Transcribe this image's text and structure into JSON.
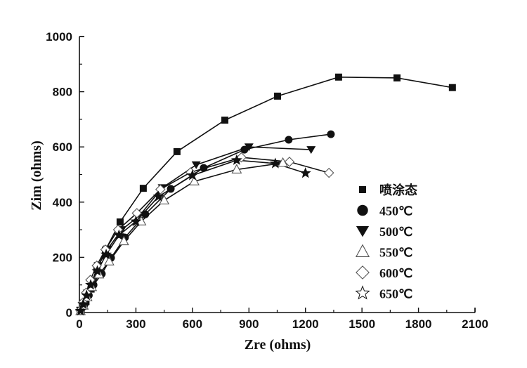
{
  "chart_data": {
    "type": "scatter",
    "title": "",
    "xlabel": "Zre (ohms)",
    "ylabel": "Zim (ohms)",
    "xlim": [
      0,
      2100
    ],
    "ylim": [
      0,
      1000
    ],
    "xticks": [
      "0",
      "300",
      "600",
      "900",
      "1200",
      "1500",
      "1800",
      "2100"
    ],
    "yticks": [
      "0",
      "200",
      "400",
      "600",
      "800",
      "1000"
    ],
    "grid": false,
    "legend_position": "right-middle",
    "series": [
      {
        "name": "喷涂态",
        "marker": "square-filled",
        "x": [
          5,
          35,
          62,
          93,
          138,
          216,
          339,
          518,
          772,
          1052,
          1376,
          1686,
          1980
        ],
        "y": [
          8,
          40,
          85,
          155,
          226,
          328,
          450,
          583,
          697,
          784,
          853,
          850,
          815
        ]
      },
      {
        "name": "450℃",
        "marker": "circle-filled",
        "x": [
          8,
          28,
          50,
          75,
          119,
          168,
          242,
          350,
          485,
          660,
          876,
          1111,
          1335
        ],
        "y": [
          6,
          30,
          62,
          100,
          140,
          198,
          272,
          356,
          448,
          524,
          590,
          626,
          646
        ]
      },
      {
        "name": "500℃",
        "marker": "triangle-down-filled",
        "x": [
          6,
          22,
          42,
          66,
          100,
          150,
          225,
          320,
          440,
          620,
          900,
          1230
        ],
        "y": [
          8,
          34,
          70,
          112,
          170,
          230,
          300,
          352,
          452,
          535,
          600,
          590
        ]
      },
      {
        "name": "550℃",
        "marker": "triangle-up-open",
        "x": [
          6,
          22,
          42,
          66,
          104,
          158,
          236,
          328,
          450,
          610,
          835,
          1080
        ],
        "y": [
          5,
          25,
          55,
          92,
          138,
          185,
          258,
          330,
          406,
          475,
          518,
          542
        ]
      },
      {
        "name": "600℃",
        "marker": "diamond-open",
        "x": [
          5,
          18,
          36,
          58,
          92,
          138,
          205,
          305,
          430,
          590,
          860,
          1115,
          1325
        ],
        "y": [
          8,
          36,
          72,
          118,
          170,
          228,
          300,
          360,
          446,
          508,
          562,
          546,
          506
        ]
      },
      {
        "name": "650℃",
        "marker": "star-open",
        "x": [
          6,
          20,
          38,
          60,
          95,
          142,
          210,
          300,
          420,
          600,
          835,
          1040,
          1200
        ],
        "y": [
          6,
          30,
          62,
          100,
          150,
          210,
          280,
          330,
          420,
          497,
          552,
          540,
          505
        ]
      }
    ]
  }
}
